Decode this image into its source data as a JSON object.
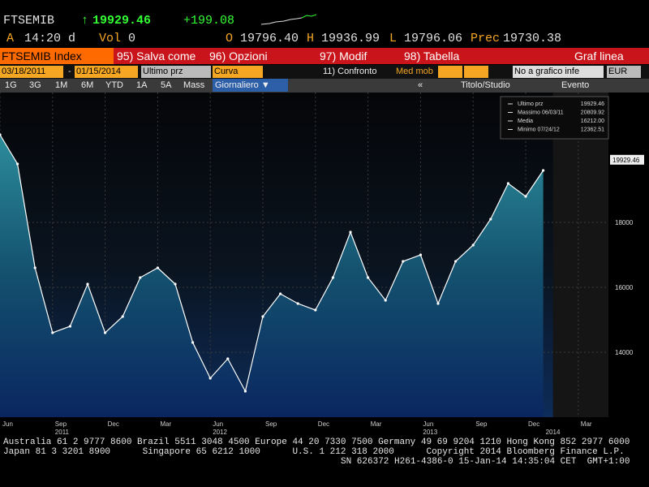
{
  "header": {
    "ticker": "FTSEMIB",
    "last": "19929.46",
    "change": "+199.08",
    "flag": "A",
    "time": "14:20",
    "period": "d",
    "vol_label": "Vol",
    "vol": "0",
    "open_label": "O",
    "open": "19796.40",
    "high_label": "H",
    "high": "19936.99",
    "low_label": "L",
    "low": "19796.06",
    "prev_label": "Prec",
    "prev": "19730.38"
  },
  "menu": {
    "security": "FTSEMIB Index",
    "items": [
      "95) Salva come",
      "96) Opzioni",
      "97) Modif",
      "98) Tabella"
    ],
    "chart_type": "Graf linea"
  },
  "settings": {
    "start": "03/18/2011",
    "dash": "-",
    "end": "01/15/2014",
    "field": "Ultimo prz",
    "style": "Curva",
    "compare": "11) Confronto",
    "moving_avg": "Med mob",
    "lower": "No a grafico infe",
    "currency": "EUR"
  },
  "periods": {
    "buttons": [
      "1G",
      "3G",
      "1M",
      "6M",
      "YTD",
      "1A",
      "5A",
      "Mass"
    ],
    "frequency": "Giornaliero",
    "collapse": "«",
    "study": "Titolo/Studio",
    "event": "Evento"
  },
  "chart_data": {
    "type": "area",
    "color": "#ffffff",
    "x": [
      "2011-06",
      "2011-07",
      "2011-08",
      "2011-09",
      "2011-10",
      "2011-11",
      "2011-12",
      "2012-01",
      "2012-02",
      "2012-03",
      "2012-04",
      "2012-05",
      "2012-06",
      "2012-07",
      "2012-08",
      "2012-09",
      "2012-10",
      "2012-11",
      "2012-12",
      "2013-01",
      "2013-02",
      "2013-03",
      "2013-04",
      "2013-05",
      "2013-06",
      "2013-07",
      "2013-08",
      "2013-09",
      "2013-10",
      "2013-11",
      "2013-12",
      "2014-01"
    ],
    "values": [
      20700,
      19800,
      16600,
      14600,
      14800,
      16100,
      14600,
      15100,
      16300,
      16600,
      16100,
      14300,
      13200,
      13800,
      12800,
      15100,
      15800,
      15500,
      15300,
      16300,
      17700,
      16300,
      15600,
      16800,
      17000,
      15500,
      16800,
      17300,
      18100,
      19200,
      18800,
      19600
    ],
    "ylim": [
      12000,
      22000
    ],
    "yticks": [
      14000,
      16000,
      18000
    ],
    "grid": true,
    "xticks": [
      {
        "value": "2011-06",
        "label": "Jun"
      },
      {
        "value": "2011-09",
        "label": "Sep"
      },
      {
        "value": "2011-12",
        "label": "Dec"
      },
      {
        "value": "2012-03",
        "label": "Mar"
      },
      {
        "value": "2012-06",
        "label": "Jun"
      },
      {
        "value": "2012-09",
        "label": "Sep"
      },
      {
        "value": "2012-12",
        "label": "Dec"
      },
      {
        "value": "2013-03",
        "label": "Mar"
      },
      {
        "value": "2013-06",
        "label": "Jun"
      },
      {
        "value": "2013-09",
        "label": "Sep"
      },
      {
        "value": "2013-12",
        "label": "Dec"
      },
      {
        "value": "2014-03",
        "label": "Mar"
      }
    ],
    "year_ticks": [
      {
        "value": "2011-09",
        "label": "2011"
      },
      {
        "value": "2012-06",
        "label": "2012"
      },
      {
        "value": "2013-06",
        "label": "2013"
      },
      {
        "value": "2014-01",
        "label": "2014"
      }
    ],
    "last_label": "19929.46",
    "legend_box": [
      {
        "label": "Ultimo prz",
        "value": "19929.46"
      },
      {
        "label": "Massimo 06/03/11",
        "value": "20809.92"
      },
      {
        "label": "Media",
        "value": "16212.00"
      },
      {
        "label": "Minimo 07/24/12",
        "value": "12362.51"
      }
    ]
  },
  "footer": {
    "lines": [
      "Australia 61 2 9777 8600 Brazil 5511 3048 4500 Europe 44 20 7330 7500 Germany 49 69 9204 1210 Hong Kong 852 2977 6000",
      "Japan 81 3 3201 8900      Singapore 65 6212 1000      U.S. 1 212 318 2000      Copyright 2014 Bloomberg Finance L.P.",
      "SN 626372 H261-4386-0 15-Jan-14 14:35:04 CET  GMT+1:00"
    ]
  }
}
